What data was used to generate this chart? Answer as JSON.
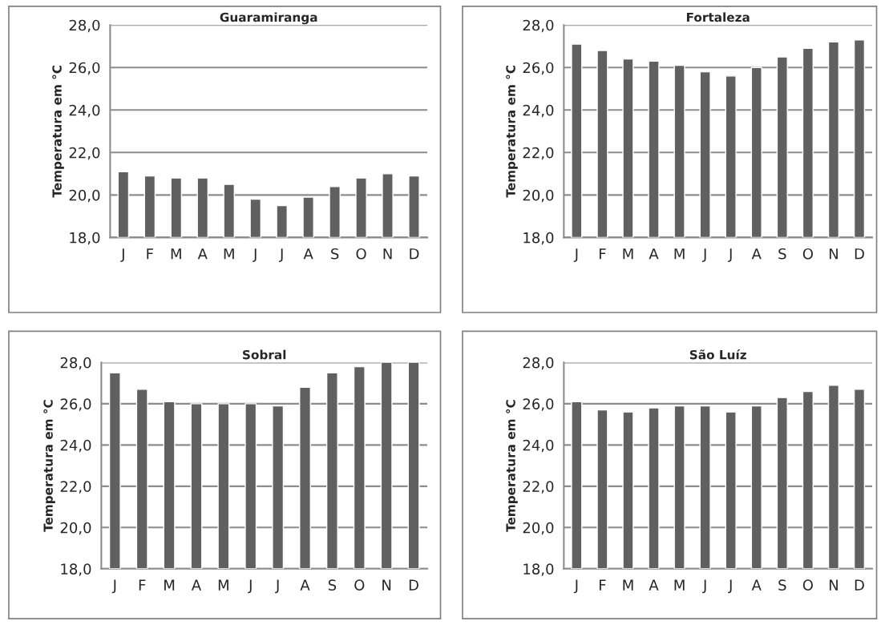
{
  "chart_data": [
    {
      "type": "bar",
      "title": "Guaramiranga",
      "ylabel": "Temperatura em °C",
      "categories": [
        "J",
        "F",
        "M",
        "A",
        "M",
        "J",
        "J",
        "A",
        "S",
        "O",
        "N",
        "D"
      ],
      "values": [
        21.1,
        20.9,
        20.8,
        20.8,
        20.5,
        19.8,
        19.5,
        19.9,
        20.4,
        20.8,
        21.0,
        20.9
      ],
      "color": "#606060",
      "ylim": [
        18,
        28
      ],
      "yticks": [
        {
          "value": 18,
          "label": "18,0"
        },
        {
          "value": 20,
          "label": "20,0"
        },
        {
          "value": 22,
          "label": "22,0"
        },
        {
          "value": 24,
          "label": "24,0"
        },
        {
          "value": 26,
          "label": "26,0"
        },
        {
          "value": 28,
          "label": "28,0"
        }
      ],
      "grid": "y"
    },
    {
      "type": "bar",
      "title": "Fortaleza",
      "ylabel": "Temperatura em °C",
      "categories": [
        "J",
        "F",
        "M",
        "A",
        "M",
        "J",
        "J",
        "A",
        "S",
        "O",
        "N",
        "D"
      ],
      "values": [
        27.1,
        26.8,
        26.4,
        26.3,
        26.1,
        25.8,
        25.6,
        26.0,
        26.5,
        26.9,
        27.2,
        27.3
      ],
      "color": "#606060",
      "ylim": [
        18,
        28
      ],
      "yticks": [
        {
          "value": 18,
          "label": "18,0"
        },
        {
          "value": 20,
          "label": "20,0"
        },
        {
          "value": 22,
          "label": "22,0"
        },
        {
          "value": 24,
          "label": "24,0"
        },
        {
          "value": 26,
          "label": "26,0"
        },
        {
          "value": 28,
          "label": "28,0"
        }
      ],
      "grid": "y"
    },
    {
      "type": "bar",
      "title": "Sobral",
      "ylabel": "Temperatura em °C",
      "categories": [
        "J",
        "F",
        "M",
        "A",
        "M",
        "J",
        "J",
        "A",
        "S",
        "O",
        "N",
        "D"
      ],
      "values": [
        27.5,
        26.7,
        26.1,
        26.0,
        26.0,
        26.0,
        25.9,
        26.8,
        27.5,
        27.8,
        28.0,
        28.0
      ],
      "color": "#606060",
      "ylim": [
        18,
        28
      ],
      "yticks": [
        {
          "value": 18,
          "label": "18,0"
        },
        {
          "value": 20,
          "label": "20,0"
        },
        {
          "value": 22,
          "label": "22,0"
        },
        {
          "value": 24,
          "label": "24,0"
        },
        {
          "value": 26,
          "label": "26,0"
        },
        {
          "value": 28,
          "label": "28,0"
        }
      ],
      "grid": "y"
    },
    {
      "type": "bar",
      "title": "São Luíz",
      "ylabel": "Temperatura em °C",
      "categories": [
        "J",
        "F",
        "M",
        "A",
        "M",
        "J",
        "J",
        "A",
        "S",
        "O",
        "N",
        "D"
      ],
      "values": [
        26.1,
        25.7,
        25.6,
        25.8,
        25.9,
        25.9,
        25.6,
        25.9,
        26.3,
        26.6,
        26.9,
        26.7
      ],
      "color": "#606060",
      "ylim": [
        18,
        28
      ],
      "yticks": [
        {
          "value": 18,
          "label": "18,0"
        },
        {
          "value": 20,
          "label": "20,0"
        },
        {
          "value": 22,
          "label": "22,0"
        },
        {
          "value": 24,
          "label": "24,0"
        },
        {
          "value": 26,
          "label": "26,0"
        },
        {
          "value": 28,
          "label": "28,0"
        }
      ],
      "grid": "y"
    }
  ]
}
